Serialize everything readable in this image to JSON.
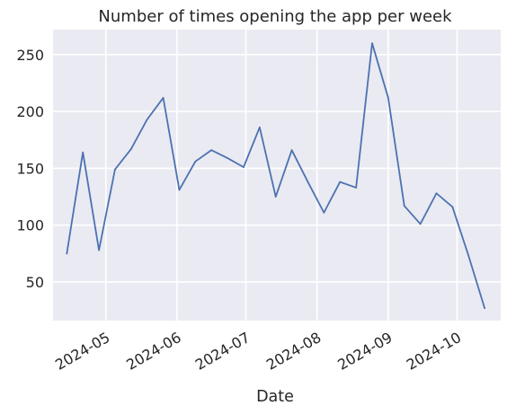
{
  "chart_data": {
    "type": "line",
    "title": "Number of times opening the app per week",
    "xlabel": "Date",
    "ylabel": "",
    "grid": true,
    "ylim": [
      16,
      272
    ],
    "xlim": [
      "2024-04-08",
      "2024-10-20"
    ],
    "y_ticks": [
      50,
      100,
      150,
      200,
      250
    ],
    "x_ticks": [
      "2024-05",
      "2024-06",
      "2024-07",
      "2024-08",
      "2024-09",
      "2024-10"
    ],
    "series": [
      {
        "color": "#4c72b0",
        "x": [
          "2024-04-14",
          "2024-04-21",
          "2024-04-28",
          "2024-05-05",
          "2024-05-12",
          "2024-05-19",
          "2024-05-26",
          "2024-06-02",
          "2024-06-09",
          "2024-06-16",
          "2024-06-23",
          "2024-06-30",
          "2024-07-07",
          "2024-07-14",
          "2024-07-21",
          "2024-07-28",
          "2024-08-04",
          "2024-08-11",
          "2024-08-18",
          "2024-08-25",
          "2024-09-01",
          "2024-09-08",
          "2024-09-15",
          "2024-09-22",
          "2024-09-29",
          "2024-10-06",
          "2024-10-13"
        ],
        "values": [
          75,
          164,
          78,
          149,
          167,
          193,
          212,
          131,
          156,
          166,
          159,
          151,
          186,
          125,
          166,
          138,
          111,
          138,
          133,
          260,
          212,
          117,
          101,
          128,
          116,
          73,
          27
        ]
      }
    ]
  }
}
